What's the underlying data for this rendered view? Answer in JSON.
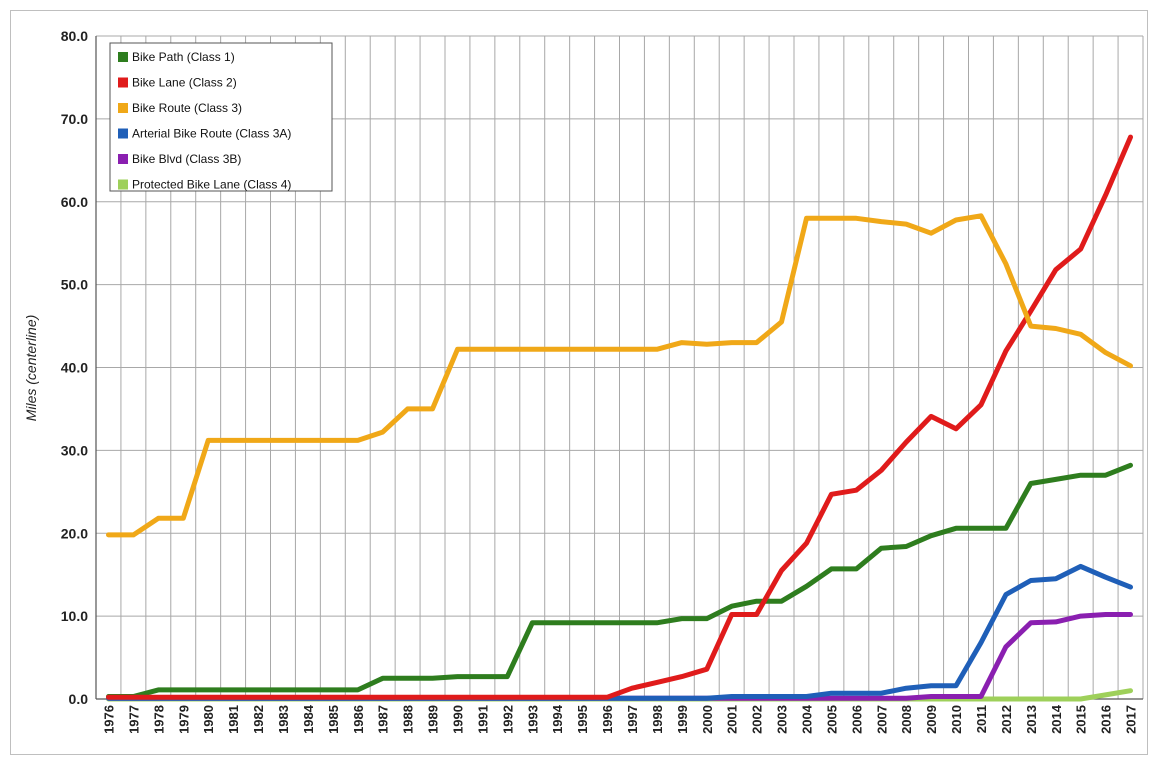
{
  "chart_data": {
    "type": "line",
    "title": "",
    "xlabel": "",
    "ylabel": "Miles (centerline)",
    "ylim": [
      0,
      80
    ],
    "yticks": [
      "0.0",
      "10.0",
      "20.0",
      "30.0",
      "40.0",
      "50.0",
      "60.0",
      "70.0",
      "80.0"
    ],
    "grid": true,
    "legend_position": "top-left",
    "categories": [
      "1976",
      "1977",
      "1978",
      "1979",
      "1980",
      "1981",
      "1982",
      "1983",
      "1984",
      "1985",
      "1986",
      "1987",
      "1988",
      "1989",
      "1990",
      "1991",
      "1992",
      "1993",
      "1994",
      "1995",
      "1996",
      "1997",
      "1998",
      "1999",
      "2000",
      "2001",
      "2002",
      "2003",
      "2004",
      "2005",
      "2006",
      "2007",
      "2008",
      "2009",
      "2010",
      "2011",
      "2012",
      "2013",
      "2014",
      "2015",
      "2016",
      "2017"
    ],
    "series": [
      {
        "name": "Bike Path (Class 1)",
        "color": "#2e7d1e",
        "values": [
          0.3,
          0.3,
          1.1,
          1.1,
          1.1,
          1.1,
          1.1,
          1.1,
          1.1,
          1.1,
          1.1,
          2.5,
          2.5,
          2.5,
          2.7,
          2.7,
          2.7,
          9.2,
          9.2,
          9.2,
          9.2,
          9.2,
          9.2,
          9.7,
          9.7,
          11.2,
          11.8,
          11.8,
          13.6,
          15.7,
          15.7,
          18.2,
          18.4,
          19.7,
          20.6,
          20.6,
          20.6,
          26.0,
          26.5,
          27.0,
          27.0,
          28.2
        ]
      },
      {
        "name": "Bike Lane (Class 2)",
        "color": "#e01b1b",
        "values": [
          0.2,
          0.2,
          0.2,
          0.2,
          0.2,
          0.2,
          0.2,
          0.2,
          0.2,
          0.2,
          0.2,
          0.2,
          0.2,
          0.2,
          0.2,
          0.2,
          0.2,
          0.2,
          0.2,
          0.2,
          0.2,
          1.3,
          2.0,
          2.7,
          3.6,
          10.2,
          10.2,
          15.5,
          18.8,
          24.7,
          25.2,
          27.6,
          31.0,
          34.1,
          32.6,
          35.5,
          42.0,
          46.8,
          51.8,
          54.3,
          60.8,
          67.8
        ]
      },
      {
        "name": "Bike Route (Class 3)",
        "color": "#f0a818",
        "values": [
          19.8,
          19.8,
          21.8,
          21.8,
          31.2,
          31.2,
          31.2,
          31.2,
          31.2,
          31.2,
          31.2,
          32.2,
          35.0,
          35.0,
          42.2,
          42.2,
          42.2,
          42.2,
          42.2,
          42.2,
          42.2,
          42.2,
          42.2,
          43.0,
          42.8,
          43.0,
          43.0,
          45.5,
          58.0,
          58.0,
          58.0,
          57.6,
          57.3,
          56.2,
          57.8,
          58.3,
          52.5,
          45.0,
          44.7,
          44.0,
          41.8,
          40.2
        ]
      },
      {
        "name": "Arterial Bike Route (Class 3A)",
        "color": "#1f5fb8",
        "values": [
          0.1,
          0.1,
          0.1,
          0.1,
          0.1,
          0.1,
          0.1,
          0.1,
          0.1,
          0.1,
          0.1,
          0.1,
          0.1,
          0.1,
          0.1,
          0.1,
          0.1,
          0.1,
          0.1,
          0.1,
          0.1,
          0.1,
          0.1,
          0.1,
          0.1,
          0.3,
          0.3,
          0.3,
          0.3,
          0.7,
          0.7,
          0.7,
          1.3,
          1.6,
          1.6,
          6.8,
          12.6,
          14.3,
          14.5,
          16.0,
          14.7,
          13.5
        ]
      },
      {
        "name": "Bike Blvd (Class 3B)",
        "color": "#8a1fb0",
        "values": [
          0.1,
          0.1,
          0.1,
          0.1,
          0.1,
          0.1,
          0.1,
          0.1,
          0.1,
          0.1,
          0.1,
          0.1,
          0.1,
          0.1,
          0.1,
          0.1,
          0.1,
          0.1,
          0.1,
          0.1,
          0.1,
          0.1,
          0.1,
          0.1,
          0.1,
          0.1,
          0.1,
          0.1,
          0.1,
          0.1,
          0.1,
          0.1,
          0.1,
          0.3,
          0.3,
          0.3,
          6.3,
          9.2,
          9.3,
          10.0,
          10.2,
          10.2
        ]
      },
      {
        "name": "Protected Bike Lane (Class 4)",
        "color": "#9ed05a",
        "values": [
          0.0,
          0.0,
          0.0,
          0.0,
          0.0,
          0.0,
          0.0,
          0.0,
          0.0,
          0.0,
          0.0,
          0.0,
          0.0,
          0.0,
          0.0,
          0.0,
          0.0,
          0.0,
          0.0,
          0.0,
          0.0,
          0.0,
          0.0,
          0.0,
          0.0,
          0.0,
          0.0,
          0.0,
          0.0,
          0.0,
          0.0,
          0.0,
          0.0,
          0.0,
          0.0,
          0.0,
          0.0,
          0.0,
          0.0,
          0.0,
          0.5,
          1.0
        ]
      }
    ]
  }
}
